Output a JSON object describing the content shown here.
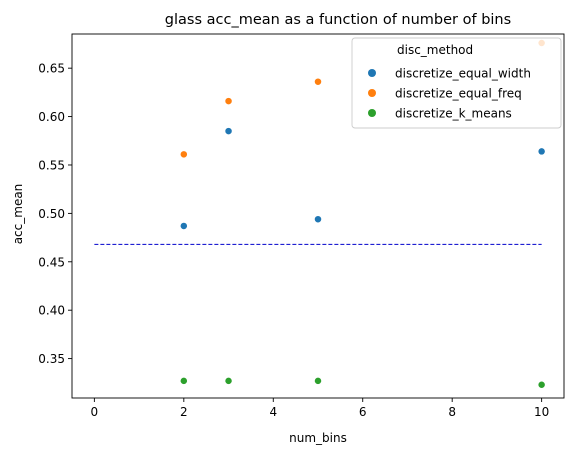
{
  "chart_data": {
    "type": "scatter",
    "title": "glass acc_mean as a function of number of bins",
    "xlabel": "num_bins",
    "ylabel": "acc_mean",
    "xlim": [
      -0.5,
      10.5
    ],
    "ylim": [
      0.3093,
      0.6853
    ],
    "xticks": [
      "0",
      "2",
      "4",
      "6",
      "8",
      "10"
    ],
    "xtick_values": [
      0,
      2,
      4,
      6,
      8,
      10
    ],
    "yticks": [
      "0.35",
      "0.40",
      "0.45",
      "0.50",
      "0.55",
      "0.60",
      "0.65"
    ],
    "ytick_values": [
      0.35,
      0.4,
      0.45,
      0.5,
      0.55,
      0.6,
      0.65
    ],
    "grid": false,
    "legend": {
      "title": "disc_method",
      "placement": "top-right"
    },
    "series": [
      {
        "name": "discretize_equal_width",
        "color": "#1f77b4",
        "x": [
          2,
          3,
          5,
          10
        ],
        "y": [
          0.487,
          0.585,
          0.494,
          0.564
        ]
      },
      {
        "name": "discretize_equal_freq",
        "color": "#ff7f0e",
        "x": [
          2,
          3,
          5,
          10
        ],
        "y": [
          0.561,
          0.616,
          0.636,
          0.676
        ]
      },
      {
        "name": "discretize_k_means",
        "color": "#2ca02c",
        "x": [
          2,
          3,
          5,
          10
        ],
        "y": [
          0.327,
          0.327,
          0.327,
          0.323
        ]
      }
    ],
    "reference_line": {
      "y": 0.468,
      "x_start": 0,
      "x_end": 10,
      "color": "#0000cc",
      "style": "dashed"
    }
  }
}
